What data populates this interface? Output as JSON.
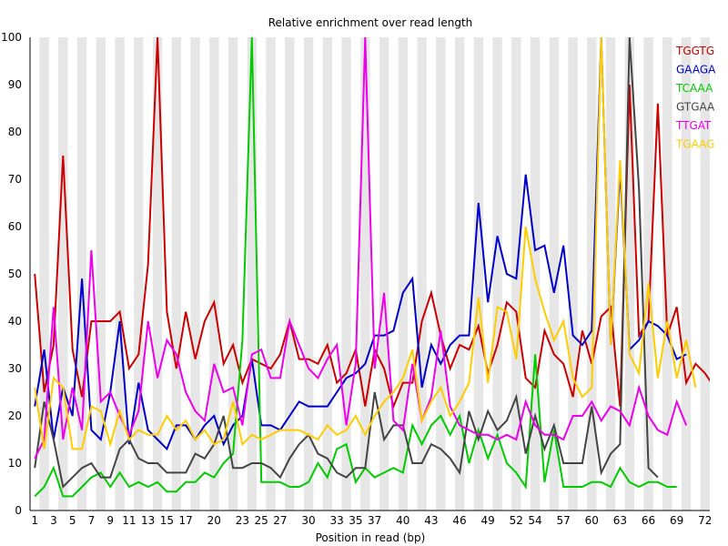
{
  "chart_data": {
    "type": "line",
    "title": "Relative enrichment over read length",
    "xlabel": "Position in read (bp)",
    "ylabel": "",
    "xlim": [
      1,
      72
    ],
    "ylim": [
      0,
      100
    ],
    "y_ticks": [
      0,
      10,
      20,
      30,
      40,
      50,
      60,
      70,
      80,
      90,
      100
    ],
    "x_tick_labels": [
      "1",
      "3",
      "5",
      "7",
      "9",
      "11",
      "13",
      "15",
      "17",
      "20",
      "23",
      "25",
      "27",
      "30",
      "33",
      "35",
      "37",
      "40",
      "43",
      "46",
      "49",
      "52",
      "54",
      "57",
      "60",
      "63",
      "66",
      "69",
      "72"
    ],
    "x_tick_positions": [
      1,
      3,
      5,
      7,
      9,
      11,
      13,
      15,
      17,
      20,
      23,
      25,
      27,
      30,
      33,
      35,
      37,
      40,
      43,
      46,
      49,
      52,
      54,
      57,
      60,
      63,
      66,
      69,
      72
    ],
    "grid": "alternating vertical bands",
    "legend_position": "top-right",
    "series": [
      {
        "name": "TGGTG",
        "color": "#cc0000",
        "values": [
          50,
          25,
          35,
          75,
          34,
          24,
          40,
          40,
          40,
          42,
          30,
          33,
          52,
          100,
          42,
          30,
          42,
          32,
          40,
          44,
          31,
          35,
          27,
          32,
          31,
          30,
          33,
          40,
          32,
          32,
          31,
          35,
          27,
          29,
          34,
          22,
          34,
          30,
          22,
          27,
          27,
          40,
          46,
          37,
          30,
          35,
          34,
          39,
          29,
          35,
          44,
          42,
          28,
          26,
          38,
          33,
          31,
          24,
          38,
          31,
          41,
          43,
          22,
          90,
          37,
          40,
          86,
          37,
          43,
          27,
          31,
          29,
          26
        ]
      },
      {
        "name": "GAAGA",
        "color": "#0000cc",
        "values": [
          22,
          34,
          15,
          26,
          20,
          49,
          17,
          15,
          25,
          40,
          14,
          27,
          17,
          15,
          13,
          18,
          18,
          15,
          18,
          20,
          14,
          18,
          20,
          32,
          18,
          18,
          17,
          20,
          23,
          22,
          22,
          22,
          25,
          28,
          29,
          31,
          37,
          37,
          38,
          46,
          49,
          26,
          35,
          31,
          35,
          37,
          37,
          65,
          44,
          58,
          50,
          49,
          71,
          55,
          56,
          46,
          56,
          37,
          35,
          38,
          100,
          35,
          72,
          34,
          36,
          40,
          39,
          37,
          32,
          33
        ]
      },
      {
        "name": "TCAAA",
        "color": "#00cc00",
        "values": [
          3,
          5,
          9,
          3,
          3,
          5,
          7,
          8,
          5,
          8,
          5,
          6,
          5,
          6,
          4,
          4,
          6,
          6,
          8,
          7,
          10,
          12,
          36,
          100,
          6,
          6,
          6,
          5,
          5,
          6,
          10,
          7,
          13,
          14,
          6,
          9,
          7,
          8,
          9,
          8,
          18,
          14,
          18,
          20,
          16,
          20,
          10,
          17,
          11,
          16,
          10,
          8,
          5,
          33,
          6,
          17,
          5,
          5,
          5,
          6,
          6,
          5,
          9,
          6,
          5,
          6,
          6,
          5,
          5
        ]
      },
      {
        "name": "GTGAA",
        "color": "#444444",
        "values": [
          9,
          23,
          15,
          5,
          7,
          9,
          10,
          7,
          7,
          13,
          15,
          11,
          10,
          10,
          8,
          8,
          8,
          12,
          11,
          14,
          20,
          9,
          9,
          10,
          10,
          9,
          7,
          11,
          14,
          16,
          12,
          11,
          8,
          7,
          9,
          9,
          25,
          15,
          18,
          18,
          10,
          10,
          14,
          13,
          11,
          8,
          21,
          15,
          21,
          17,
          19,
          24,
          12,
          20,
          13,
          18,
          10,
          10,
          10,
          22,
          8,
          12,
          14,
          100,
          68,
          9,
          7
        ]
      },
      {
        "name": "TTGAT",
        "color": "#ee00ee",
        "values": [
          11,
          15,
          43,
          15,
          26,
          17,
          55,
          23,
          25,
          20,
          16,
          21,
          40,
          28,
          36,
          33,
          25,
          21,
          19,
          31,
          25,
          26,
          18,
          33,
          34,
          28,
          28,
          40,
          35,
          30,
          28,
          32,
          35,
          18,
          31,
          100,
          30,
          46,
          19,
          17,
          31,
          19,
          24,
          38,
          22,
          18,
          17,
          16,
          16,
          15,
          16,
          15,
          23,
          18,
          16,
          16,
          15,
          20,
          20,
          23,
          19,
          22,
          21,
          18,
          26,
          20,
          17,
          16,
          23,
          18
        ]
      },
      {
        "name": "TGAAG",
        "color": "#ffcc00",
        "values": [
          26,
          13,
          28,
          26,
          13,
          13,
          22,
          21,
          14,
          21,
          15,
          17,
          16,
          16,
          20,
          17,
          19,
          15,
          17,
          14,
          15,
          23,
          14,
          16,
          15,
          16,
          17,
          17,
          17,
          16,
          15,
          18,
          16,
          17,
          20,
          16,
          20,
          23,
          25,
          28,
          34,
          19,
          23,
          26,
          20,
          23,
          27,
          45,
          27,
          43,
          42,
          32,
          60,
          49,
          42,
          36,
          40,
          28,
          24,
          26,
          100,
          35,
          74,
          33,
          29,
          48,
          28,
          40,
          28,
          36,
          26
        ]
      }
    ]
  }
}
